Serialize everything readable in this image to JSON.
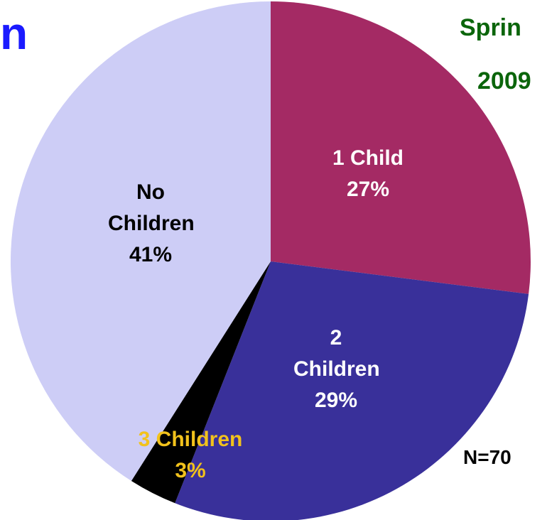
{
  "chart_data": {
    "type": "pie",
    "categories": [
      "1 Child",
      "2 Children",
      "3 Children",
      "No Children"
    ],
    "values": [
      27,
      29,
      3,
      41
    ],
    "value_labels": [
      "27%",
      "29%",
      "3%",
      "41%"
    ],
    "colors": [
      "#a42a64",
      "#39309a",
      "#000000",
      "#cdcdf6"
    ],
    "label_colors": [
      "#ffffff",
      "#ffffff",
      "#f2c21c",
      "#000000"
    ],
    "annotations": [
      "n",
      "Sprin",
      "2009",
      "N=70"
    ]
  }
}
